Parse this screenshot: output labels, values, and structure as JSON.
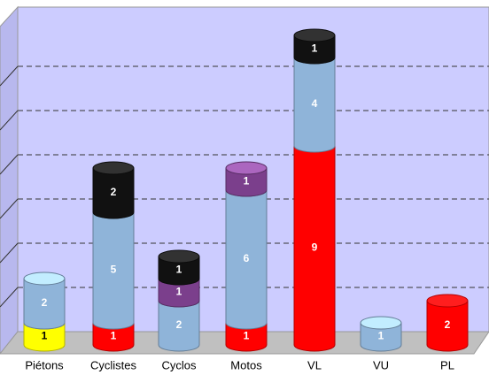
{
  "chart_data": {
    "type": "bar",
    "categories": [
      "Piétons",
      "Cyclistes",
      "Cyclos",
      "Motos",
      "VL",
      "VU",
      "PL"
    ],
    "series": [
      {
        "color": "#ffff00",
        "values": [
          1,
          null,
          null,
          null,
          null,
          null,
          null
        ]
      },
      {
        "color": "#ff0000",
        "values": [
          null,
          1,
          null,
          1,
          9,
          null,
          2
        ]
      },
      {
        "color": "#8fb4d9",
        "values": [
          2,
          5,
          2,
          6,
          4,
          1,
          null
        ]
      },
      {
        "color": "#7b3f8c",
        "values": [
          null,
          null,
          1,
          1,
          null,
          null,
          null
        ]
      },
      {
        "color": "#111111",
        "values": [
          null,
          2,
          1,
          null,
          1,
          null,
          null
        ]
      }
    ],
    "stacked": true,
    "ylim": [
      0,
      14
    ],
    "yticks": [
      2,
      4,
      6,
      8,
      10,
      12
    ],
    "grid": true
  }
}
